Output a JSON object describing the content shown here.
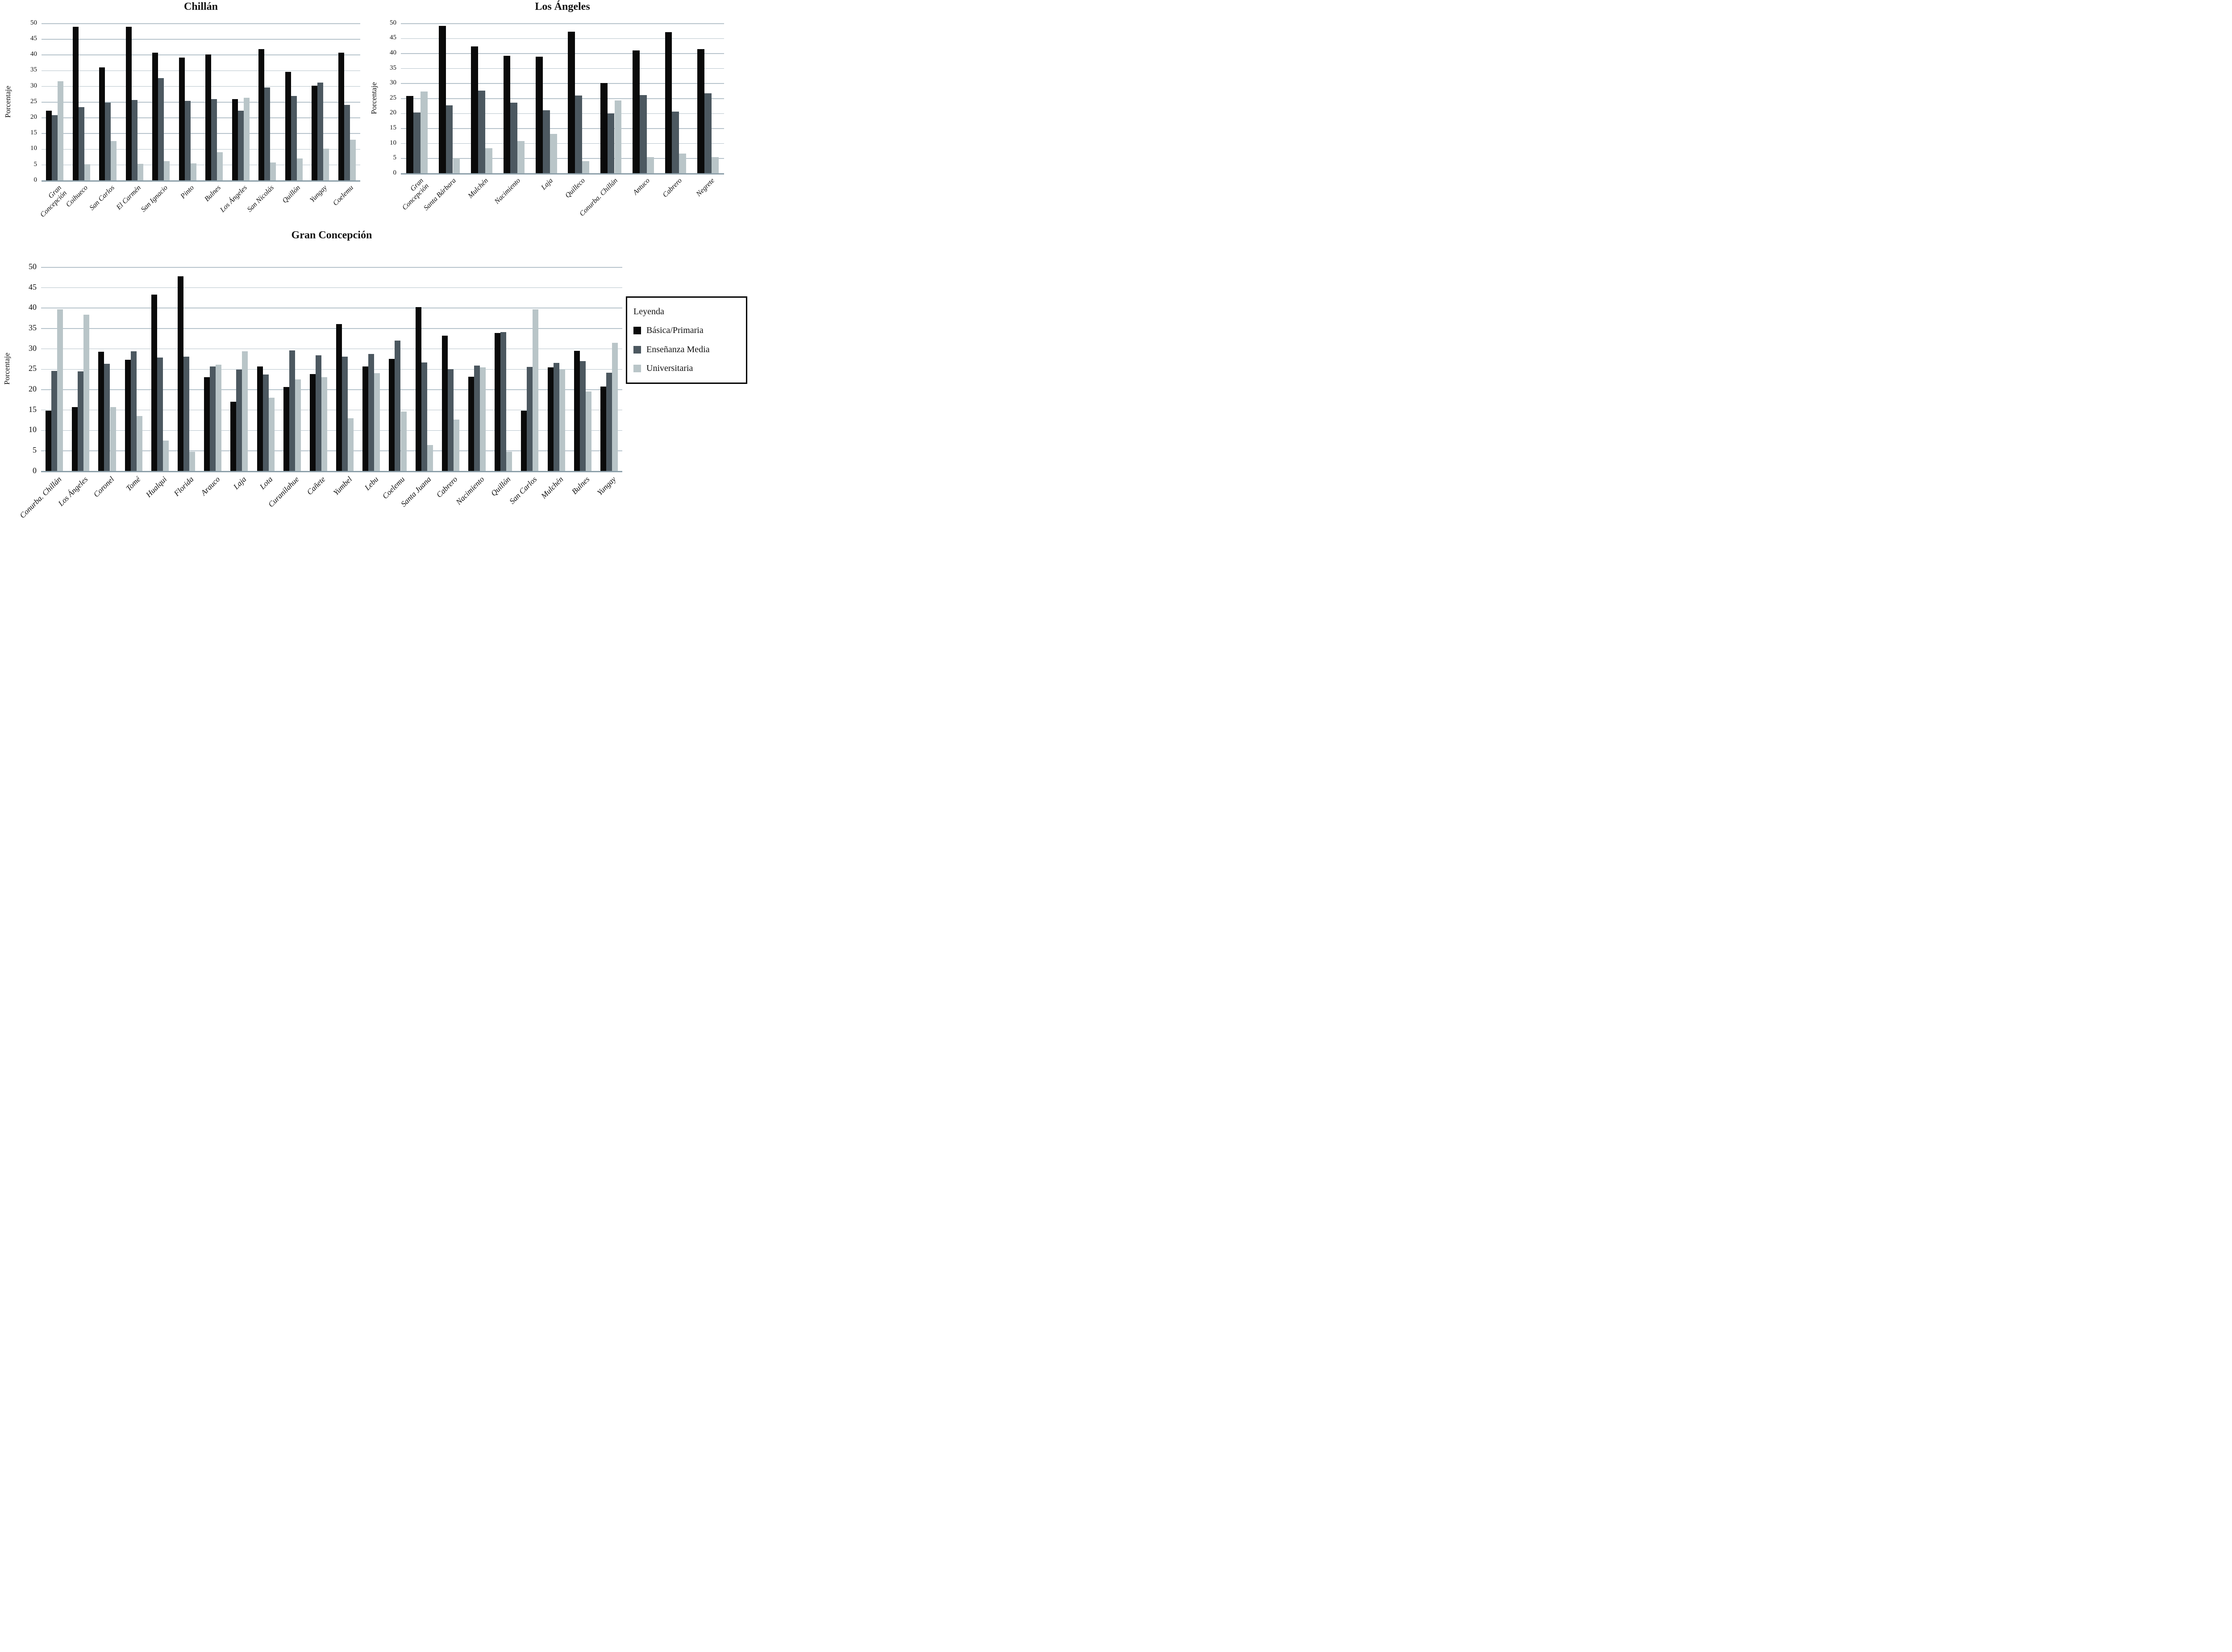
{
  "ylabel": "Porcentaje",
  "colors": {
    "basica": "#0a0a0a",
    "media": "#4c5860",
    "universitaria": "#b9c5c8",
    "grid": "#b6c3cb",
    "axis": "#8da0aa"
  },
  "legend": {
    "title": "Leyenda",
    "items": [
      {
        "label": "Básica/Primaria",
        "color": "#0a0a0a"
      },
      {
        "label": "Enseñanza Media",
        "color": "#4c5860"
      },
      {
        "label": "Universitaria",
        "color": "#b9c5c8"
      }
    ]
  },
  "chart_data": [
    {
      "type": "bar",
      "title": "Chillán",
      "ylabel": "Porcentaje",
      "ylim": [
        0,
        50
      ],
      "ytick_step": 5,
      "grid": true,
      "categories": [
        "Gran\nConcepción",
        "Coihueco",
        "San Carlos",
        "El Carmén",
        "San Ignacio",
        "Pinto",
        "Bulnes",
        "Los Ángeles",
        "San Nicolás",
        "Quillón",
        "Yungay",
        "Coelemu"
      ],
      "series": [
        {
          "name": "Básica/Primaria",
          "color": "#0a0a0a",
          "values": [
            22.2,
            48.8,
            36.0,
            48.8,
            40.6,
            39.1,
            40.1,
            25.8,
            41.7,
            34.5,
            30.1,
            40.7
          ]
        },
        {
          "name": "Enseñanza Media",
          "color": "#4c5860",
          "values": [
            20.7,
            23.3,
            24.7,
            25.6,
            32.6,
            25.3,
            25.9,
            22.1,
            29.6,
            26.8,
            31.1,
            24.0
          ]
        },
        {
          "name": "Universitaria",
          "color": "#b9c5c8",
          "values": [
            31.6,
            5.1,
            12.5,
            5.2,
            6.1,
            5.4,
            9.0,
            26.3,
            5.7,
            7.0,
            10.1,
            13.0
          ]
        }
      ]
    },
    {
      "type": "bar",
      "title": "Los Ángeles",
      "ylabel": "Porcentaje",
      "ylim": [
        0,
        50
      ],
      "ytick_step": 5,
      "grid": true,
      "categories": [
        "Gran\nConcepción",
        "Santa Bárbara",
        "Mulchén",
        "Nacimiento",
        "Laja",
        "Quilleco",
        "Conurba. Chillán",
        "Antuco",
        "Cabrero",
        "Negrete"
      ],
      "series": [
        {
          "name": "Básica/Primaria",
          "color": "#0a0a0a",
          "values": [
            25.7,
            49.1,
            42.2,
            39.2,
            38.9,
            47.2,
            30.1,
            40.9,
            47.1,
            41.4
          ]
        },
        {
          "name": "Enseñanza Media",
          "color": "#4c5860",
          "values": [
            20.3,
            22.6,
            27.5,
            23.5,
            21.0,
            25.9,
            20.0,
            26.1,
            20.6,
            26.6
          ]
        },
        {
          "name": "Universitaria",
          "color": "#b9c5c8",
          "values": [
            27.2,
            5.0,
            8.4,
            10.7,
            13.1,
            4.0,
            24.3,
            5.4,
            6.6,
            5.3
          ]
        }
      ]
    },
    {
      "type": "bar",
      "title": "Gran Concepción",
      "ylabel": "Porcentaje",
      "ylim": [
        0,
        50
      ],
      "ytick_step": 5,
      "grid": true,
      "legend_position": "right",
      "categories": [
        "Conurba. Chillán",
        "Los Ángeles",
        "Coronel",
        "Tomé",
        "Hualqui",
        "Florida",
        "Arauco",
        "Laja",
        "Lota",
        "Curanilahue",
        "Cañete",
        "Yumbel",
        "Lebu",
        "Coelemu",
        "Santa Juana",
        "Cabrero",
        "Nacimiento",
        "Quillón",
        "San Carlos",
        "Mulchén",
        "Bulnes",
        "Yungay"
      ],
      "series": [
        {
          "name": "Básica/Primaria",
          "color": "#0a0a0a",
          "values": [
            14.8,
            15.6,
            29.2,
            27.2,
            43.2,
            47.7,
            23.0,
            17.0,
            25.6,
            20.6,
            23.7,
            36.0,
            25.6,
            27.5,
            40.2,
            33.2,
            23.1,
            33.8,
            14.8,
            25.4,
            29.4,
            20.7
          ]
        },
        {
          "name": "Enseñanza Media",
          "color": "#4c5860",
          "values": [
            24.5,
            24.4,
            26.3,
            29.3,
            27.8,
            28.0,
            25.6,
            24.8,
            23.6,
            29.5,
            28.3,
            28.0,
            28.7,
            32.0,
            26.6,
            25.0,
            25.8,
            34.0,
            25.5,
            26.5,
            26.9,
            24.1
          ]
        },
        {
          "name": "Universitaria",
          "color": "#b9c5c8",
          "values": [
            39.6,
            38.3,
            15.7,
            13.5,
            7.5,
            4.7,
            26.0,
            29.3,
            18.0,
            22.4,
            23.0,
            12.9,
            24.0,
            14.6,
            6.3,
            12.6,
            25.4,
            4.7,
            39.6,
            24.9,
            19.5,
            31.4
          ]
        }
      ]
    }
  ]
}
